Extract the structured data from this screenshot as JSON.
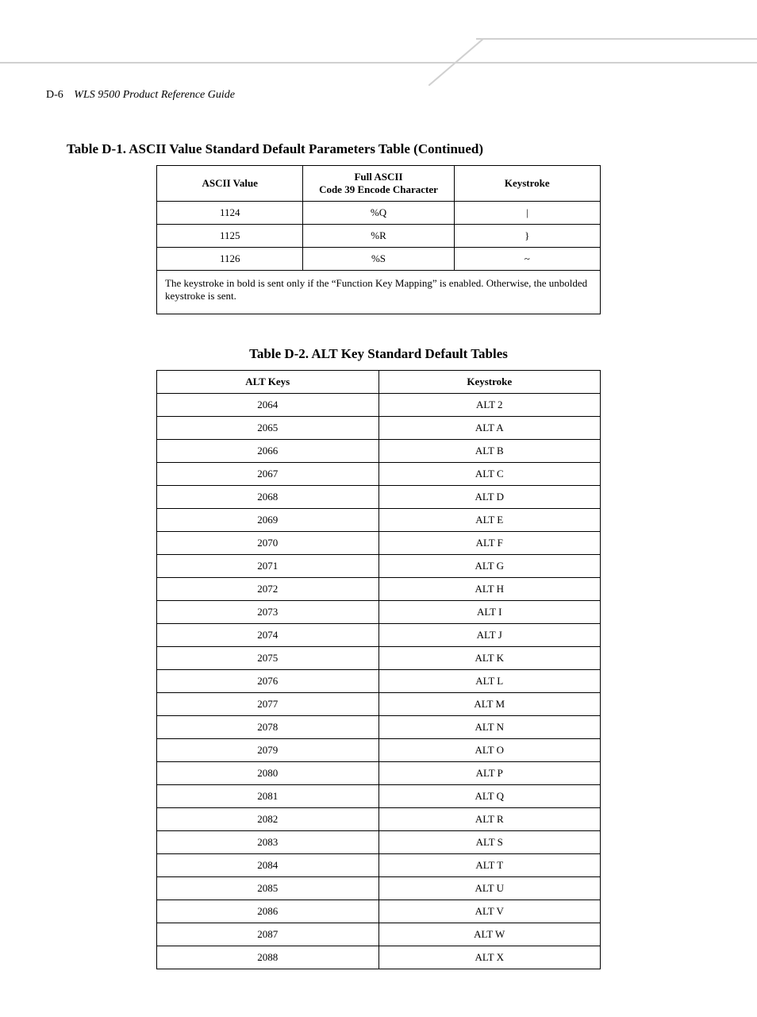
{
  "header": {
    "page_number": "D-6",
    "book_title": "WLS 9500 Product Reference Guide",
    "rule_color": "#d0d0d0"
  },
  "table_d1": {
    "caption": "Table D-1.  ASCII Value Standard Default Parameters Table (Continued)",
    "columns": {
      "c1": "ASCII Value",
      "c2_line1": "Full ASCII",
      "c2_line2": "Code 39 Encode Character",
      "c3": "Keystroke"
    },
    "rows": [
      {
        "v": "1124",
        "e": "%Q",
        "k": "|"
      },
      {
        "v": "1125",
        "e": "%R",
        "k": "}"
      },
      {
        "v": "1126",
        "e": "%S",
        "k": "~"
      }
    ],
    "footnote": "The keystroke in bold is sent only if the “Function Key Mapping” is enabled. Otherwise, the unbolded keystroke is sent.",
    "border_color": "#000000",
    "font_size_pt": 10
  },
  "table_d2": {
    "caption": "Table D-2. ALT Key Standard Default Tables",
    "columns": {
      "c1": "ALT Keys",
      "c2": "Keystroke"
    },
    "rows": [
      {
        "k": "2064",
        "s": "ALT 2"
      },
      {
        "k": "2065",
        "s": "ALT A"
      },
      {
        "k": "2066",
        "s": "ALT B"
      },
      {
        "k": "2067",
        "s": "ALT C"
      },
      {
        "k": "2068",
        "s": "ALT D"
      },
      {
        "k": "2069",
        "s": "ALT E"
      },
      {
        "k": "2070",
        "s": "ALT F"
      },
      {
        "k": "2071",
        "s": "ALT G"
      },
      {
        "k": "2072",
        "s": "ALT H"
      },
      {
        "k": "2073",
        "s": "ALT I"
      },
      {
        "k": "2074",
        "s": "ALT J"
      },
      {
        "k": "2075",
        "s": "ALT K"
      },
      {
        "k": "2076",
        "s": "ALT L"
      },
      {
        "k": "2077",
        "s": "ALT M"
      },
      {
        "k": "2078",
        "s": "ALT N"
      },
      {
        "k": "2079",
        "s": "ALT O"
      },
      {
        "k": "2080",
        "s": "ALT P"
      },
      {
        "k": "2081",
        "s": "ALT Q"
      },
      {
        "k": "2082",
        "s": "ALT R"
      },
      {
        "k": "2083",
        "s": "ALT S"
      },
      {
        "k": "2084",
        "s": "ALT T"
      },
      {
        "k": "2085",
        "s": "ALT U"
      },
      {
        "k": "2086",
        "s": "ALT V"
      },
      {
        "k": "2087",
        "s": "ALT W"
      },
      {
        "k": "2088",
        "s": "ALT X"
      }
    ],
    "border_color": "#000000",
    "font_size_pt": 10
  }
}
